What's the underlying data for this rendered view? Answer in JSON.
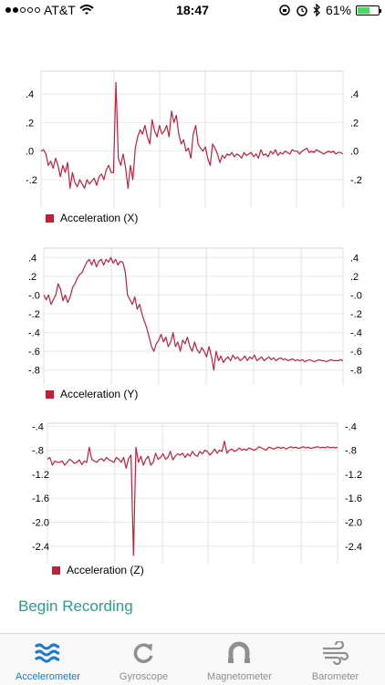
{
  "status_bar": {
    "carrier": "AT&T",
    "time": "18:47",
    "battery": "61%",
    "battery_level": 0.61,
    "signal_bars": 2
  },
  "chart_data": [
    {
      "type": "line",
      "series": [
        {
          "name": "Acceleration (X)",
          "color": "#c21f3b",
          "values": [
            0.0,
            0.01,
            -0.02,
            -0.1,
            -0.07,
            -0.12,
            -0.05,
            -0.1,
            -0.18,
            -0.1,
            -0.15,
            -0.08,
            -0.26,
            -0.15,
            -0.22,
            -0.25,
            -0.2,
            -0.23,
            -0.26,
            -0.2,
            -0.23,
            -0.21,
            -0.19,
            -0.24,
            -0.18,
            -0.16,
            -0.2,
            -0.13,
            -0.1,
            -0.15,
            -0.15,
            0.48,
            -0.05,
            -0.1,
            -0.02,
            -0.12,
            -0.26,
            -0.1,
            -0.2,
            0.02,
            0.1,
            0.15,
            0.12,
            0.18,
            0.1,
            0.05,
            0.22,
            0.14,
            0.1,
            0.18,
            0.12,
            0.14,
            0.18,
            0.1,
            0.28,
            0.2,
            0.25,
            0.12,
            0.05,
            0.08,
            0.0,
            0.02,
            -0.05,
            0.12,
            0.18,
            0.05,
            0.02,
            0.0,
            0.03,
            -0.05,
            -0.1,
            0.05,
            0.02,
            -0.02,
            -0.08,
            -0.03,
            -0.05,
            -0.02,
            -0.03,
            -0.01,
            -0.04,
            -0.02,
            -0.03,
            -0.05,
            -0.01,
            -0.03,
            -0.02,
            -0.01,
            -0.04,
            -0.02,
            -0.05,
            0.01,
            -0.03,
            -0.02,
            -0.04,
            0.0,
            -0.02,
            0.01,
            -0.03,
            -0.01,
            -0.02,
            0.0,
            -0.01,
            -0.02,
            0.01,
            0.0,
            0.0,
            -0.02,
            0.0,
            0.01,
            0.02,
            -0.01,
            0.0,
            -0.01,
            0.01,
            0.0,
            -0.01,
            -0.02,
            -0.01,
            0.0,
            -0.01,
            0.0,
            -0.02,
            -0.01,
            -0.01,
            -0.02
          ]
        }
      ],
      "y_ticks": [
        ".4",
        ".2",
        ".0",
        "-.2"
      ],
      "y_tick_values": [
        0.4,
        0.2,
        0.0,
        -0.2
      ],
      "ylim": [
        -0.36,
        0.56
      ],
      "grid": true,
      "legend_position": "bottom-left"
    },
    {
      "type": "line",
      "series": [
        {
          "name": "Acceleration (Y)",
          "color": "#c21f3b",
          "values": [
            0.0,
            -0.05,
            0.0,
            -0.1,
            -0.05,
            0.0,
            0.12,
            0.06,
            -0.06,
            0.0,
            -0.08,
            -0.02,
            0.08,
            0.12,
            0.18,
            0.22,
            0.24,
            0.3,
            0.35,
            0.38,
            0.32,
            0.38,
            0.3,
            0.36,
            0.38,
            0.32,
            0.38,
            0.35,
            0.4,
            0.34,
            0.38,
            0.32,
            0.36,
            0.35,
            0.25,
            0.0,
            -0.05,
            -0.1,
            -0.02,
            -0.15,
            -0.1,
            -0.2,
            -0.28,
            -0.35,
            -0.45,
            -0.55,
            -0.6,
            -0.52,
            -0.48,
            -0.42,
            -0.5,
            -0.45,
            -0.55,
            -0.5,
            -0.4,
            -0.55,
            -0.5,
            -0.6,
            -0.48,
            -0.52,
            -0.45,
            -0.55,
            -0.6,
            -0.5,
            -0.58,
            -0.62,
            -0.56,
            -0.6,
            -0.66,
            -0.55,
            -0.65,
            -0.8,
            -0.6,
            -0.7,
            -0.65,
            -0.72,
            -0.68,
            -0.66,
            -0.7,
            -0.64,
            -0.68,
            -0.66,
            -0.7,
            -0.68,
            -0.65,
            -0.7,
            -0.66,
            -0.68,
            -0.64,
            -0.7,
            -0.68,
            -0.66,
            -0.7,
            -0.68,
            -0.66,
            -0.69,
            -0.67,
            -0.7,
            -0.68,
            -0.67,
            -0.69,
            -0.68,
            -0.7,
            -0.69,
            -0.68,
            -0.7,
            -0.69,
            -0.7,
            -0.69,
            -0.71,
            -0.7,
            -0.69,
            -0.7,
            -0.71,
            -0.7,
            -0.69,
            -0.7,
            -0.7,
            -0.71,
            -0.7,
            -0.69,
            -0.7,
            -0.7,
            -0.7,
            -0.69,
            -0.7
          ]
        }
      ],
      "y_ticks": [
        ".4",
        ".2",
        "-.0",
        "-.2",
        "-.4",
        "-.6",
        "-.8"
      ],
      "y_tick_values": [
        0.4,
        0.2,
        0.0,
        -0.2,
        -0.4,
        -0.6,
        -0.8
      ],
      "ylim": [
        -0.9,
        0.5
      ],
      "grid": true,
      "legend_position": "bottom-left"
    },
    {
      "type": "line",
      "series": [
        {
          "name": "Acceleration (Z)",
          "color": "#c21f3b",
          "values": [
            -0.95,
            -0.92,
            -1.05,
            -0.98,
            -1.0,
            -1.0,
            -0.98,
            -1.05,
            -1.0,
            -0.95,
            -0.98,
            -1.02,
            -1.0,
            -0.96,
            -1.04,
            -0.98,
            -1.0,
            -0.75,
            -0.95,
            -0.98,
            -1.0,
            -0.96,
            -0.94,
            -0.98,
            -0.92,
            -0.96,
            -0.98,
            -1.0,
            -0.92,
            -0.95,
            -1.0,
            -0.92,
            -1.1,
            -0.94,
            -0.88,
            -2.55,
            -0.75,
            -1.0,
            -0.9,
            -1.05,
            -0.95,
            -0.9,
            -1.05,
            -1.0,
            -0.85,
            -0.95,
            -0.92,
            -0.86,
            -0.95,
            -0.92,
            -0.82,
            -0.96,
            -0.9,
            -0.86,
            -0.88,
            -0.85,
            -0.92,
            -0.86,
            -0.9,
            -0.82,
            -0.88,
            -0.9,
            -0.82,
            -0.86,
            -0.8,
            -0.82,
            -0.88,
            -0.84,
            -0.78,
            -0.85,
            -0.8,
            -0.82,
            -0.65,
            -0.85,
            -0.8,
            -0.78,
            -0.82,
            -0.8,
            -0.76,
            -0.8,
            -0.78,
            -0.8,
            -0.76,
            -0.78,
            -0.8,
            -0.78,
            -0.74,
            -0.76,
            -0.78,
            -0.8,
            -0.75,
            -0.76,
            -0.78,
            -0.76,
            -0.75,
            -0.77,
            -0.75,
            -0.78,
            -0.76,
            -0.74,
            -0.76,
            -0.75,
            -0.77,
            -0.76,
            -0.74,
            -0.76,
            -0.75,
            -0.77,
            -0.76,
            -0.75,
            -0.74,
            -0.76,
            -0.75,
            -0.76,
            -0.74,
            -0.76,
            -0.75,
            -0.76,
            -0.75
          ]
        }
      ],
      "y_ticks": [
        "-.4",
        "-.8",
        "-1.2",
        "-1.6",
        "-2.0",
        "-2.4"
      ],
      "y_tick_values": [
        -0.4,
        -0.8,
        -1.2,
        -1.6,
        -2.0,
        -2.4
      ],
      "ylim": [
        -2.6,
        -0.35
      ],
      "grid": true,
      "legend_position": "bottom-left"
    }
  ],
  "actions": {
    "begin_recording": "Begin Recording"
  },
  "tabs": [
    {
      "label": "Accelerometer",
      "icon": "waves-icon",
      "active": true
    },
    {
      "label": "Gyroscope",
      "icon": "rotate-icon",
      "active": false
    },
    {
      "label": "Magnetometer",
      "icon": "magnet-icon",
      "active": false
    },
    {
      "label": "Barometer",
      "icon": "wind-icon",
      "active": false
    }
  ],
  "colors": {
    "series": "#c21f3b",
    "accent": "#2a9d8f",
    "tab_active": "#1a7ad9",
    "tab_inactive": "#8e8e93"
  }
}
